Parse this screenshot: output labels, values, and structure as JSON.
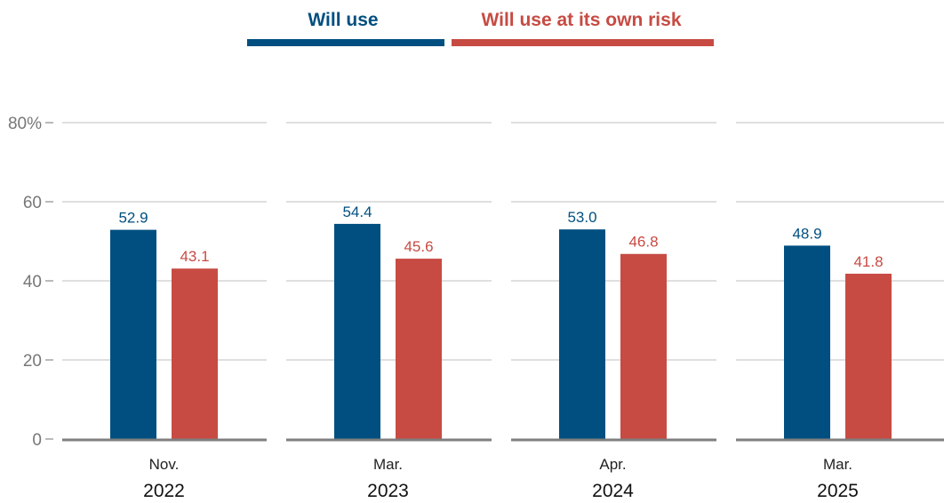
{
  "chart_data": {
    "type": "bar",
    "title": "",
    "xlabel": "",
    "ylabel": "",
    "ylim": [
      0,
      80
    ],
    "y_ticks": [
      {
        "value": 0,
        "label": "0"
      },
      {
        "value": 20,
        "label": "20"
      },
      {
        "value": 40,
        "label": "40"
      },
      {
        "value": 60,
        "label": "60"
      },
      {
        "value": 80,
        "label": "80%"
      }
    ],
    "grid": true,
    "legend_position": "top-center",
    "categories": [
      {
        "month": "Nov.",
        "year": "2022"
      },
      {
        "month": "Mar.",
        "year": "2023"
      },
      {
        "month": "Apr.",
        "year": "2024"
      },
      {
        "month": "Mar.",
        "year": "2025"
      }
    ],
    "series": [
      {
        "name": "Will use",
        "color": "#004f80",
        "values": [
          52.9,
          54.4,
          53.0,
          48.9
        ],
        "labels": [
          "52.9",
          "54.4",
          "53.0",
          "48.9"
        ]
      },
      {
        "name": "Will use at its own risk",
        "color": "#c74b43",
        "values": [
          43.1,
          45.6,
          46.8,
          41.8
        ],
        "labels": [
          "43.1",
          "45.6",
          "46.8",
          "41.8"
        ]
      }
    ]
  }
}
